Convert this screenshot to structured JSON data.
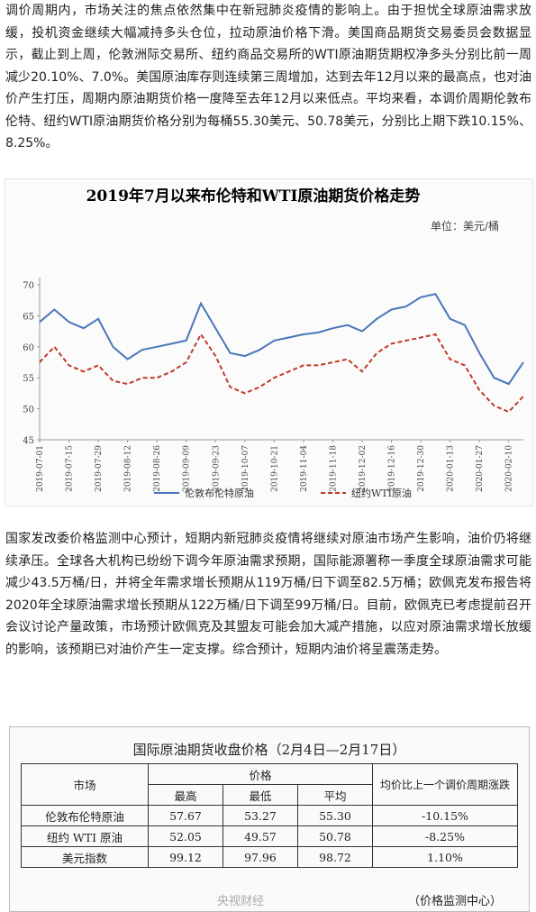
{
  "paragraphs": [
    "调价周期内，市场关注的焦点依然集中在新冠肺炎疫情的影响上。由于担忧全球原油需求放缓，投机资金继续大幅减持多头仓位，拉动原油价格下滑。美国商品期货交易委员会数据显示，截止到上周，伦敦洲际交易所、纽约商品交易所的WTI原油期货期权净多头分别比前一周减少20.10%、7.0%。美国原油库存则连续第三周增加，达到去年12月以来的最高点，也对油价产生打压，周期内原油期货价格一度降至去年12月以来低点。平均来看，本调价周期伦敦布伦特、纽约WTI原油期货价格分别为每桶55.30美元、50.78美元，分别比上期下跌10.15%、8.25%。",
    "国家发改委价格监测中心预计，短期内新冠肺炎疫情将继续对原油市场产生影响，油价仍将继续承压。全球各大机构已纷纷下调今年原油需求预期，国际能源署称一季度全球原油需求可能减少43.5万桶/日，并将全年需求增长预期从119万桶/日下调至82.5万桶；欧佩克发布报告将2020年全球原油需求增长预期从122万桶/日下调至99万桶/日。目前，欧佩克已考虑提前召开会议讨论产量政策，市场预计欧佩克及其盟友可能会加大减产措施，以应对原油需求增长放缓的影响，该预期已对油价产生一定支撑。综合预计，短期内油价将呈震荡走势。"
  ],
  "chart_data": {
    "type": "line",
    "title": "2019年7月以来布伦特和WTI原油期货价格走势",
    "unit": "单位：美元/桶",
    "x": [
      "2019-07-01",
      "2019-07-08",
      "2019-07-15",
      "2019-07-22",
      "2019-07-29",
      "2019-08-05",
      "2019-08-12",
      "2019-08-19",
      "2019-08-26",
      "2019-09-02",
      "2019-09-09",
      "2019-09-16",
      "2019-09-23",
      "2019-09-30",
      "2019-10-07",
      "2019-10-14",
      "2019-10-21",
      "2019-10-28",
      "2019-11-04",
      "2019-11-11",
      "2019-11-18",
      "2019-11-25",
      "2019-12-02",
      "2019-12-09",
      "2019-12-16",
      "2019-12-23",
      "2019-12-30",
      "2020-01-06",
      "2020-01-13",
      "2020-01-20",
      "2020-01-27",
      "2020-02-03",
      "2020-02-10",
      "2020-02-17"
    ],
    "series": [
      {
        "name": "伦敦布伦特原油",
        "color": "#4a76b8",
        "values": [
          64,
          66,
          64,
          63,
          64.5,
          60,
          58,
          59.5,
          60,
          60.5,
          61,
          67,
          63,
          59,
          58.5,
          59.5,
          61,
          61.5,
          62,
          62.3,
          63,
          63.5,
          62.5,
          64.5,
          66,
          66.5,
          68,
          68.5,
          64.5,
          63.5,
          59,
          55,
          54,
          57.5
        ]
      },
      {
        "name": "纽约WTI原油",
        "color": "#c0392b",
        "dashed": true,
        "values": [
          57.5,
          60,
          57,
          56,
          57,
          54.5,
          54,
          55,
          55,
          56,
          57.5,
          62,
          58.5,
          53.5,
          52.5,
          53.5,
          55,
          56,
          57,
          57,
          57.5,
          58,
          56,
          59,
          60.5,
          61,
          61.5,
          62,
          58,
          57,
          53,
          50.5,
          49.5,
          52
        ]
      }
    ],
    "xlim": [
      "2019-07-01",
      "2020-02-17"
    ],
    "xticks": [
      "2019-07-01",
      "2019-07-15",
      "2019-07-29",
      "2019-08-12",
      "2019-08-26",
      "2019-09-09",
      "2019-09-23",
      "2019-10-07",
      "2019-10-21",
      "2019-11-04",
      "2019-11-18",
      "2019-12-02",
      "2019-12-16",
      "2019-12-30",
      "2020-01-13",
      "2020-01-27",
      "2020-02-10"
    ],
    "ylim": [
      45,
      70
    ],
    "yticks": [
      45,
      50,
      55,
      60,
      65,
      70
    ],
    "grid": false
  },
  "table": {
    "title": "国际原油期货收盘价格（2月4日—2月17日）",
    "header": [
      "市场",
      "价格",
      "均价比上一个调价周期涨跌"
    ],
    "subheader": [
      "最高",
      "最低",
      "平均"
    ],
    "rows": [
      [
        "伦敦布伦特原油",
        "57.67",
        "53.27",
        "55.30",
        "-10.15%"
      ],
      [
        "纽约 WTI 原油",
        "52.05",
        "49.57",
        "50.78",
        "-8.25%"
      ],
      [
        "美元指数",
        "99.12",
        "97.96",
        "98.72",
        "1.10%"
      ]
    ],
    "source": "（价格监测中心）",
    "watermark": "央视财经"
  }
}
